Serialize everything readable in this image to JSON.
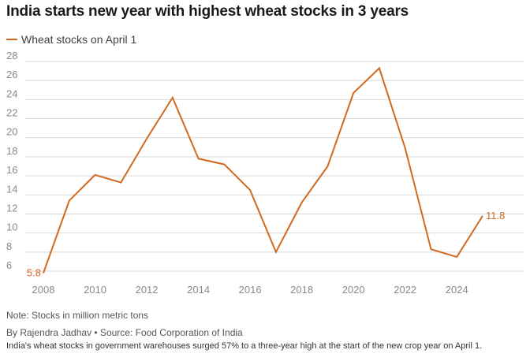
{
  "title": "India starts new year with highest wheat stocks in 3 years",
  "legend_label": "Wheat stocks on April 1",
  "note": "Note: Stocks in million metric tons",
  "byline": "By Rajendra Jadhav • Source: Food Corporation of India",
  "caption": "India's wheat stocks in government warehouses surged 57% to a three-year high at the start of the new crop year on April 1.",
  "colors": {
    "series": "#d2691e",
    "grid": "#d9d9d9",
    "tick": "#8a8a8a"
  },
  "chart_data": {
    "type": "line",
    "title": "India starts new year with highest wheat stocks in 3 years",
    "xlabel": "",
    "ylabel": "",
    "xlim": [
      2008,
      2025
    ],
    "ylim": [
      6,
      28
    ],
    "x_ticks": [
      2008,
      2010,
      2012,
      2014,
      2016,
      2018,
      2020,
      2022,
      2024
    ],
    "y_ticks": [
      6,
      8,
      10,
      12,
      14,
      16,
      18,
      20,
      22,
      24,
      26,
      28
    ],
    "grid": true,
    "legend": "top-left",
    "series": [
      {
        "name": "Wheat stocks on April 1",
        "x": [
          2008,
          2009,
          2010,
          2011,
          2012,
          2013,
          2014,
          2015,
          2016,
          2017,
          2018,
          2019,
          2020,
          2021,
          2022,
          2023,
          2024,
          2025
        ],
        "values": [
          5.8,
          13.4,
          16.1,
          15.3,
          19.9,
          24.2,
          17.8,
          17.2,
          14.5,
          8.0,
          13.2,
          17.0,
          24.7,
          27.3,
          18.9,
          8.3,
          7.5,
          11.8
        ]
      }
    ],
    "annotations": [
      {
        "x": 2008,
        "text": "5.8"
      },
      {
        "x": 2025,
        "text": "11.8"
      }
    ]
  }
}
